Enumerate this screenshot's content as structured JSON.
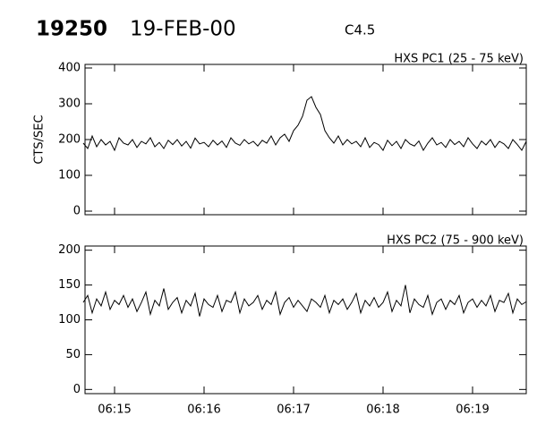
{
  "header": {
    "event": "19250",
    "date": "19-FEB-00",
    "class": "C4.5"
  },
  "chart_data": [
    {
      "type": "line",
      "title": "HXS PC1 (25 - 75 keV)",
      "y_label": "CTS/SEC",
      "xlim": [
        14.67,
        19.6
      ],
      "ylim": [
        -10,
        410
      ],
      "yticks": [
        0,
        100,
        200,
        300,
        400
      ],
      "xticks": [
        15,
        16,
        17,
        18,
        19
      ],
      "x": [
        14.65,
        14.7,
        14.75,
        14.8,
        14.85,
        14.9,
        14.95,
        15.0,
        15.05,
        15.1,
        15.15,
        15.2,
        15.25,
        15.3,
        15.35,
        15.4,
        15.45,
        15.5,
        15.55,
        15.6,
        15.65,
        15.7,
        15.75,
        15.8,
        15.85,
        15.9,
        15.95,
        16.0,
        16.05,
        16.1,
        16.15,
        16.2,
        16.25,
        16.3,
        16.35,
        16.4,
        16.45,
        16.5,
        16.55,
        16.6,
        16.65,
        16.7,
        16.75,
        16.8,
        16.85,
        16.9,
        16.95,
        17.0,
        17.05,
        17.1,
        17.15,
        17.2,
        17.25,
        17.3,
        17.35,
        17.4,
        17.45,
        17.5,
        17.55,
        17.6,
        17.65,
        17.7,
        17.75,
        17.8,
        17.85,
        17.9,
        17.95,
        18.0,
        18.05,
        18.1,
        18.15,
        18.2,
        18.25,
        18.3,
        18.35,
        18.4,
        18.45,
        18.5,
        18.55,
        18.6,
        18.65,
        18.7,
        18.75,
        18.8,
        18.85,
        18.9,
        18.95,
        19.0,
        19.05,
        19.1,
        19.15,
        19.2,
        19.25,
        19.3,
        19.35,
        19.4,
        19.45,
        19.5,
        19.55,
        19.6
      ],
      "series": [
        {
          "name": "HXS PC1",
          "color": "#000000",
          "values": [
            190,
            175,
            210,
            180,
            200,
            185,
            195,
            170,
            205,
            190,
            185,
            200,
            178,
            195,
            188,
            205,
            180,
            192,
            175,
            198,
            186,
            200,
            182,
            195,
            176,
            204,
            188,
            192,
            180,
            198,
            185,
            196,
            178,
            205,
            190,
            184,
            200,
            188,
            195,
            182,
            198,
            190,
            210,
            185,
            205,
            215,
            195,
            225,
            240,
            265,
            310,
            320,
            290,
            270,
            225,
            205,
            190,
            210,
            185,
            200,
            188,
            195,
            180,
            205,
            178,
            192,
            186,
            170,
            198,
            183,
            195,
            175,
            200,
            188,
            182,
            196,
            170,
            190,
            205,
            185,
            192,
            178,
            200,
            186,
            195,
            180,
            205,
            188,
            175,
            196,
            185,
            200,
            178,
            195,
            188,
            175,
            200,
            186,
            170,
            195
          ]
        }
      ]
    },
    {
      "type": "line",
      "title": "HXS PC2 (75 - 900 keV)",
      "xlim": [
        14.67,
        19.6
      ],
      "ylim": [
        -6,
        206
      ],
      "yticks": [
        0,
        50,
        100,
        150,
        200
      ],
      "xticks": [
        {
          "value": 15,
          "label": "06:15"
        },
        {
          "value": 16,
          "label": "06:16"
        },
        {
          "value": 17,
          "label": "06:17"
        },
        {
          "value": 18,
          "label": "06:18"
        },
        {
          "value": 19,
          "label": "06:19"
        }
      ],
      "x": [
        14.65,
        14.7,
        14.75,
        14.8,
        14.85,
        14.9,
        14.95,
        15.0,
        15.05,
        15.1,
        15.15,
        15.2,
        15.25,
        15.3,
        15.35,
        15.4,
        15.45,
        15.5,
        15.55,
        15.6,
        15.65,
        15.7,
        15.75,
        15.8,
        15.85,
        15.9,
        15.95,
        16.0,
        16.05,
        16.1,
        16.15,
        16.2,
        16.25,
        16.3,
        16.35,
        16.4,
        16.45,
        16.5,
        16.55,
        16.6,
        16.65,
        16.7,
        16.75,
        16.8,
        16.85,
        16.9,
        16.95,
        17.0,
        17.05,
        17.1,
        17.15,
        17.2,
        17.25,
        17.3,
        17.35,
        17.4,
        17.45,
        17.5,
        17.55,
        17.6,
        17.65,
        17.7,
        17.75,
        17.8,
        17.85,
        17.9,
        17.95,
        18.0,
        18.05,
        18.1,
        18.15,
        18.2,
        18.25,
        18.3,
        18.35,
        18.4,
        18.45,
        18.5,
        18.55,
        18.6,
        18.65,
        18.7,
        18.75,
        18.8,
        18.85,
        18.9,
        18.95,
        19.0,
        19.05,
        19.1,
        19.15,
        19.2,
        19.25,
        19.3,
        19.35,
        19.4,
        19.45,
        19.5,
        19.55,
        19.6
      ],
      "series": [
        {
          "name": "HXS PC2",
          "color": "#000000",
          "values": [
            125,
            135,
            110,
            130,
            120,
            140,
            115,
            128,
            122,
            135,
            118,
            130,
            112,
            125,
            140,
            108,
            128,
            120,
            145,
            115,
            125,
            132,
            110,
            128,
            120,
            138,
            105,
            130,
            122,
            118,
            135,
            112,
            128,
            125,
            140,
            110,
            130,
            120,
            125,
            135,
            115,
            128,
            122,
            140,
            108,
            125,
            132,
            118,
            128,
            120,
            112,
            130,
            125,
            118,
            135,
            110,
            128,
            122,
            130,
            115,
            125,
            138,
            110,
            128,
            120,
            132,
            118,
            125,
            140,
            112,
            128,
            120,
            150,
            110,
            130,
            122,
            118,
            135,
            108,
            125,
            130,
            115,
            128,
            122,
            135,
            110,
            125,
            130,
            118,
            128,
            120,
            135,
            112,
            128,
            125,
            138,
            110,
            130,
            122,
            126
          ]
        }
      ]
    }
  ]
}
